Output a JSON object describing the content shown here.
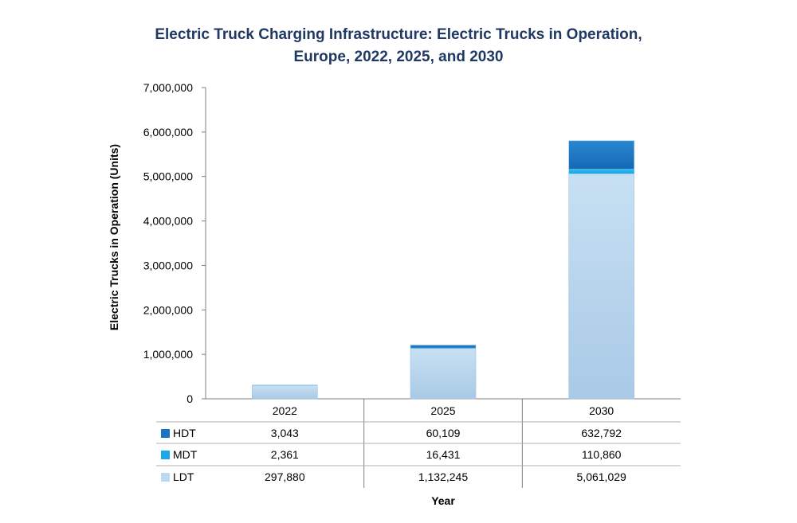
{
  "chart_data": {
    "type": "bar",
    "stacked": true,
    "title_lines": [
      "Electric Truck Charging Infrastructure: Electric Trucks in Operation,",
      "Europe, 2022, 2025, and 2030"
    ],
    "xlabel": "Year",
    "ylabel": "Electric Trucks  in Operation (Units)",
    "ylim": [
      0,
      7000000
    ],
    "yticks": [
      0,
      1000000,
      2000000,
      3000000,
      4000000,
      5000000,
      6000000,
      7000000
    ],
    "ytick_labels": [
      "0",
      "1,000,000",
      "2,000,000",
      "3,000,000",
      "4,000,000",
      "5,000,000",
      "6,000,000",
      "7,000,000"
    ],
    "categories": [
      "2022",
      "2025",
      "2030"
    ],
    "grid": false,
    "legend": "data-table",
    "series": [
      {
        "name": "LDT",
        "values": [
          297880,
          1132245,
          5061029
        ],
        "labels": [
          "297,880",
          "1,132,245",
          "5,061,029"
        ],
        "color": "#bcd9f0"
      },
      {
        "name": "MDT",
        "values": [
          2361,
          16431,
          110860
        ],
        "labels": [
          "2,361",
          "16,431",
          "110,860"
        ],
        "color": "#1ea7e8"
      },
      {
        "name": "HDT",
        "values": [
          3043,
          60109,
          632792
        ],
        "labels": [
          "3,043",
          "60,109",
          "632,792"
        ],
        "color": "#1a74c0"
      }
    ],
    "table_row_order": [
      "HDT",
      "MDT",
      "LDT"
    ]
  }
}
